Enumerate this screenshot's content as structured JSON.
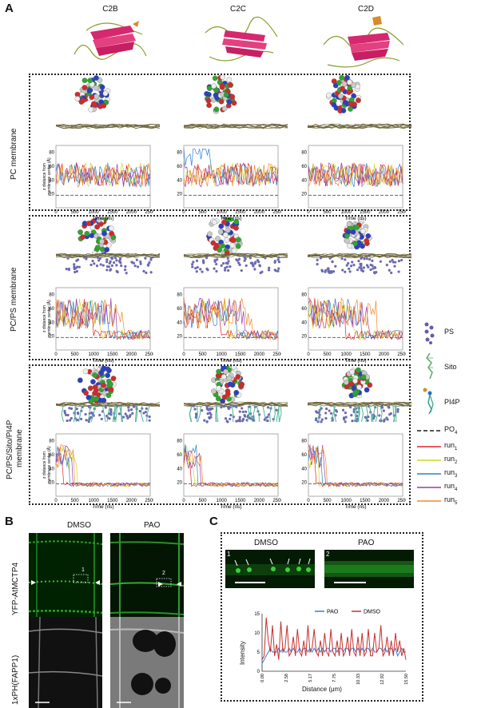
{
  "panels": {
    "A": "A",
    "B": "B",
    "C": "C"
  },
  "columns": [
    "C2B",
    "C2C",
    "C2D"
  ],
  "rows": [
    "PC membrane",
    "PC/PS membrane",
    "PC/PS/Sito/PI4P membrane"
  ],
  "row3_line1": "PC/PS/Sito/PI4P",
  "row3_line2": "membrane",
  "md_plot": {
    "ylabel_line1": "z distance from",
    "ylabel_line2": "membrane center (Å)",
    "xlabel": "Time (ns)",
    "xticks": [
      "0",
      "500",
      "1000",
      "1500",
      "2000",
      "2500"
    ],
    "yticks": [
      "20",
      "40",
      "60",
      "80"
    ]
  },
  "legend": {
    "molecules": [
      "PS",
      "Sito",
      "PI4P"
    ],
    "po4_label": "PO",
    "po4_sub": "4",
    "runs": [
      {
        "base": "run",
        "sub": "1",
        "color": "#e0262b"
      },
      {
        "base": "run",
        "sub": "2",
        "color": "#c9d82a"
      },
      {
        "base": "run",
        "sub": "3",
        "color": "#2f7fd0"
      },
      {
        "base": "run",
        "sub": "4",
        "color": "#9b3d9e"
      },
      {
        "base": "run",
        "sub": "5",
        "color": "#f08a2c"
      }
    ]
  },
  "panelB": {
    "conditions": [
      "DMSO",
      "PAO"
    ],
    "row_labels": [
      "YFP-AtMCTP4",
      "1xPH(FAPP1)"
    ],
    "roi": [
      "1",
      "2"
    ]
  },
  "panelC": {
    "conditions": [
      "DMSO",
      "PAO"
    ],
    "roi": [
      "1",
      "2"
    ],
    "chart_data": {
      "type": "line",
      "xlabel": "Distance (μm)",
      "ylabel": "Intensity",
      "x_ticks": [
        "0.00",
        "2.58",
        "5.17",
        "7.75",
        "10.33",
        "12.92",
        "15.50"
      ],
      "y_ticks": [
        "0",
        "5",
        "10",
        "15"
      ],
      "ylim": [
        0,
        15
      ],
      "xlim": [
        0,
        15.5
      ],
      "legend": [
        "PAO",
        "DMSO"
      ],
      "series": [
        {
          "name": "PAO",
          "color": "#3b7fd4",
          "values": [
            2,
            3,
            4,
            5,
            6,
            5,
            5,
            5,
            6,
            5,
            6,
            5,
            5,
            6,
            5,
            6,
            5,
            5,
            6,
            5,
            6,
            6,
            5,
            6,
            5,
            6,
            5,
            6,
            5,
            6,
            5,
            6,
            6,
            5,
            6,
            6,
            5,
            6,
            6,
            5,
            6,
            6,
            5,
            6,
            6,
            5,
            6,
            5,
            6,
            5,
            6,
            6,
            5,
            6,
            5,
            5,
            6,
            6,
            5,
            6,
            5,
            6,
            6,
            5,
            6,
            4,
            5,
            6,
            5,
            5
          ]
        },
        {
          "name": "DMSO",
          "color": "#c8302c",
          "values": [
            3,
            4,
            14,
            8,
            5,
            12,
            4,
            7,
            3,
            13,
            5,
            6,
            12,
            4,
            5,
            9,
            4,
            11,
            5,
            4,
            8,
            4,
            12,
            5,
            6,
            11,
            5,
            4,
            8,
            4,
            10,
            5,
            4,
            11,
            5,
            4,
            8,
            4,
            10,
            4,
            5,
            9,
            4,
            11,
            5,
            4,
            9,
            4,
            10,
            4,
            5,
            11,
            4,
            4,
            10,
            5,
            6,
            12,
            4,
            5,
            9,
            4,
            8,
            4,
            10,
            5,
            8,
            4,
            6,
            3
          ]
        }
      ]
    }
  }
}
